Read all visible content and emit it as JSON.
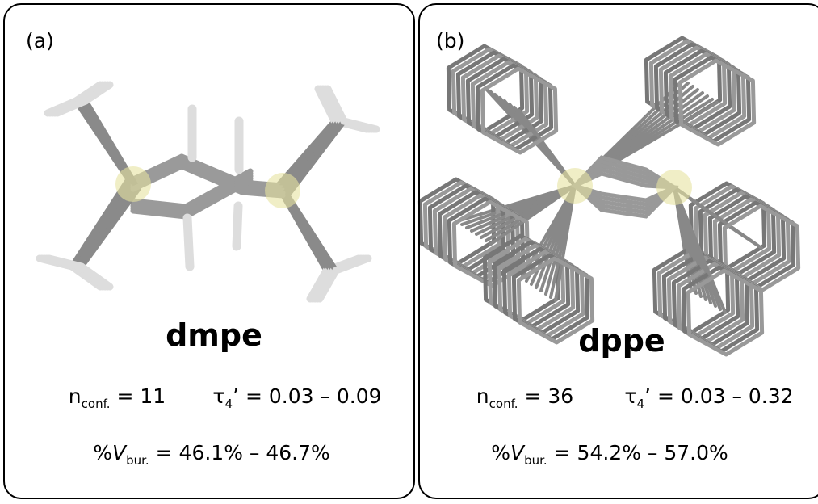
{
  "panels": [
    {
      "label": "(a)",
      "name": "dmpe",
      "n_conf": {
        "symbol": "n",
        "subscript": "conf.",
        "value": "= 11"
      },
      "tau": {
        "symbol": "τ",
        "subscript": "4",
        "prime": "’",
        "value": "= 0.03 – 0.09"
      },
      "vbur": {
        "prefix": "%",
        "symbol": "V",
        "subscript": "bur.",
        "value": "= 46.1% – 46.7%"
      }
    },
    {
      "label": "(b)",
      "name": "dppe",
      "n_conf": {
        "symbol": "n",
        "subscript": "conf.",
        "value": "= 36"
      },
      "tau": {
        "symbol": "τ",
        "subscript": "4",
        "prime": "’",
        "value": "= 0.03 – 0.32"
      },
      "vbur": {
        "prefix": "%",
        "symbol": "V",
        "subscript": "bur.",
        "value": "= 54.2% – 57.0%"
      }
    }
  ]
}
